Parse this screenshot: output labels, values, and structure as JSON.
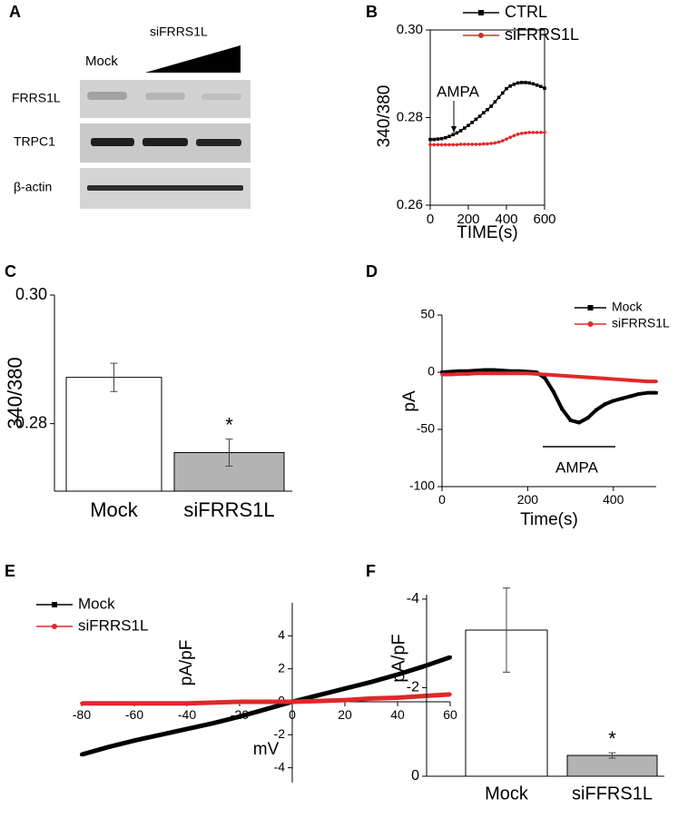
{
  "blot": {
    "panel": "A",
    "header": "siFRRS1L",
    "lane_label": "Mock",
    "rows": [
      "FRRS1L",
      "TRPC1",
      "β-actin"
    ]
  },
  "chart_data": [
    {
      "type": "line",
      "panel": "B",
      "ylabel": "340/380",
      "xlabel": "TIME(s)",
      "annotation": "AMPA",
      "frame": true,
      "x": [
        0,
        20,
        40,
        60,
        80,
        100,
        120,
        140,
        160,
        180,
        200,
        220,
        240,
        260,
        280,
        300,
        320,
        340,
        360,
        380,
        400,
        420,
        440,
        460,
        480,
        500,
        520,
        540,
        560,
        580,
        600
      ],
      "series": [
        {
          "name": "CTRL",
          "color": "#000000",
          "marker": "square",
          "values": [
            0.275,
            0.275,
            0.2751,
            0.2752,
            0.2754,
            0.2757,
            0.2761,
            0.2765,
            0.277,
            0.2776,
            0.2782,
            0.2789,
            0.2796,
            0.2803,
            0.2811,
            0.2818,
            0.2826,
            0.2836,
            0.2846,
            0.2856,
            0.2866,
            0.2872,
            0.2876,
            0.2879,
            0.288,
            0.288,
            0.2879,
            0.2877,
            0.2874,
            0.2871,
            0.2867
          ]
        },
        {
          "name": "siFRRS1L",
          "color": "#e0282a",
          "marker": "circle",
          "values": [
            0.2738,
            0.2738,
            0.2738,
            0.2738,
            0.2738,
            0.2738,
            0.2738,
            0.2738,
            0.2739,
            0.2739,
            0.2739,
            0.2739,
            0.2739,
            0.2739,
            0.274,
            0.274,
            0.2741,
            0.2742,
            0.2744,
            0.2747,
            0.2751,
            0.2755,
            0.2759,
            0.2762,
            0.2764,
            0.2765,
            0.2766,
            0.2766,
            0.2766,
            0.2766,
            0.2766
          ]
        }
      ],
      "xlim": [
        0,
        600
      ],
      "xticks": [
        0,
        200,
        400,
        600
      ],
      "ylim": [
        0.26,
        0.3
      ],
      "yticks": [
        0.26,
        0.28,
        {
          "value": 0.3,
          "label": "0.30"
        }
      ],
      "legend": "upper right"
    },
    {
      "type": "bar",
      "panel": "C",
      "ylabel": "340/380",
      "annotation": "*",
      "categories": [
        "Mock",
        "siFRRS1L"
      ],
      "values": [
        0.2872,
        0.2755
      ],
      "errors": [
        0.0022,
        0.0021
      ],
      "colors": [
        "#ffffff",
        "#b3b3b3"
      ],
      "ylim": [
        0.2695,
        0.3
      ],
      "yticks": [
        0.28,
        {
          "value": 0.3,
          "label": "0.30"
        }
      ]
    },
    {
      "type": "line",
      "panel": "D",
      "ylabel": "pA",
      "xlabel": "Time(s)",
      "annotation": "AMPA",
      "x": [
        0,
        20,
        40,
        60,
        80,
        100,
        120,
        140,
        160,
        180,
        200,
        220,
        240,
        260,
        280,
        300,
        320,
        340,
        360,
        380,
        400,
        420,
        440,
        460,
        480,
        500
      ],
      "series": [
        {
          "name": "Mock",
          "color": "#000000",
          "marker": "square",
          "values": [
            0,
            0.5,
            1,
            1,
            1.5,
            2,
            2,
            1.5,
            1,
            1,
            0.5,
            0,
            -5,
            -17,
            -32,
            -42,
            -44,
            -40,
            -33,
            -28,
            -25,
            -23,
            -21,
            -19,
            -18,
            -18
          ]
        },
        {
          "name": "siFRRS1L",
          "color": "#e0282a",
          "marker": "circle",
          "values": [
            -2,
            -2,
            -1.5,
            -1.5,
            -1,
            -1,
            -1,
            -1,
            -1,
            -1,
            -1,
            -1.5,
            -2,
            -2.5,
            -3,
            -3.5,
            -4,
            -4.5,
            -5,
            -5.5,
            -6,
            -6.5,
            -7,
            -7.5,
            -8,
            -8
          ]
        }
      ],
      "xlim": [
        0,
        500
      ],
      "xticks": [
        0,
        200,
        400
      ],
      "ylim": [
        -100,
        50
      ],
      "yticks": [
        -100,
        -50,
        0,
        50
      ],
      "legend": "upper right"
    },
    {
      "type": "line",
      "panel": "E",
      "ylabel": "pA/pF",
      "xlabel": "mV",
      "axes_cross_at_zero": true,
      "x": [
        -80,
        -70,
        -60,
        -50,
        -40,
        -30,
        -20,
        -10,
        0,
        10,
        20,
        30,
        40,
        50,
        60
      ],
      "series": [
        {
          "name": "Mock",
          "color": "#000000",
          "marker": "square",
          "values": [
            -3.2,
            -2.75,
            -2.35,
            -2.0,
            -1.65,
            -1.3,
            -0.9,
            -0.45,
            0,
            0.4,
            0.8,
            1.2,
            1.65,
            2.15,
            2.7
          ]
        },
        {
          "name": "siFRRS1L",
          "color": "#e0282a",
          "marker": "circle",
          "values": [
            -0.1,
            -0.1,
            -0.1,
            -0.1,
            -0.1,
            -0.05,
            0,
            0,
            0,
            0.05,
            0.1,
            0.2,
            0.25,
            0.35,
            0.45
          ]
        }
      ],
      "xlim": [
        -80,
        60
      ],
      "xticks": [
        -80,
        -60,
        -40,
        -20,
        0,
        20,
        40,
        60
      ],
      "ylim": [
        -4.9,
        6
      ],
      "yticks": [
        -4,
        -2,
        0,
        2,
        4
      ],
      "legend": "upper left"
    },
    {
      "type": "bar",
      "panel": "F",
      "ylabel": "pA/pF",
      "annotation": "*",
      "categories": [
        "Mock",
        "siFFRS1L"
      ],
      "values": [
        -3.3,
        -0.47
      ],
      "errors": [
        0.95,
        0.06
      ],
      "colors": [
        "#ffffff",
        "#b3b3b3"
      ],
      "ylim": [
        0,
        -4.1
      ],
      "yticks": [
        -4,
        -2,
        0
      ]
    }
  ]
}
